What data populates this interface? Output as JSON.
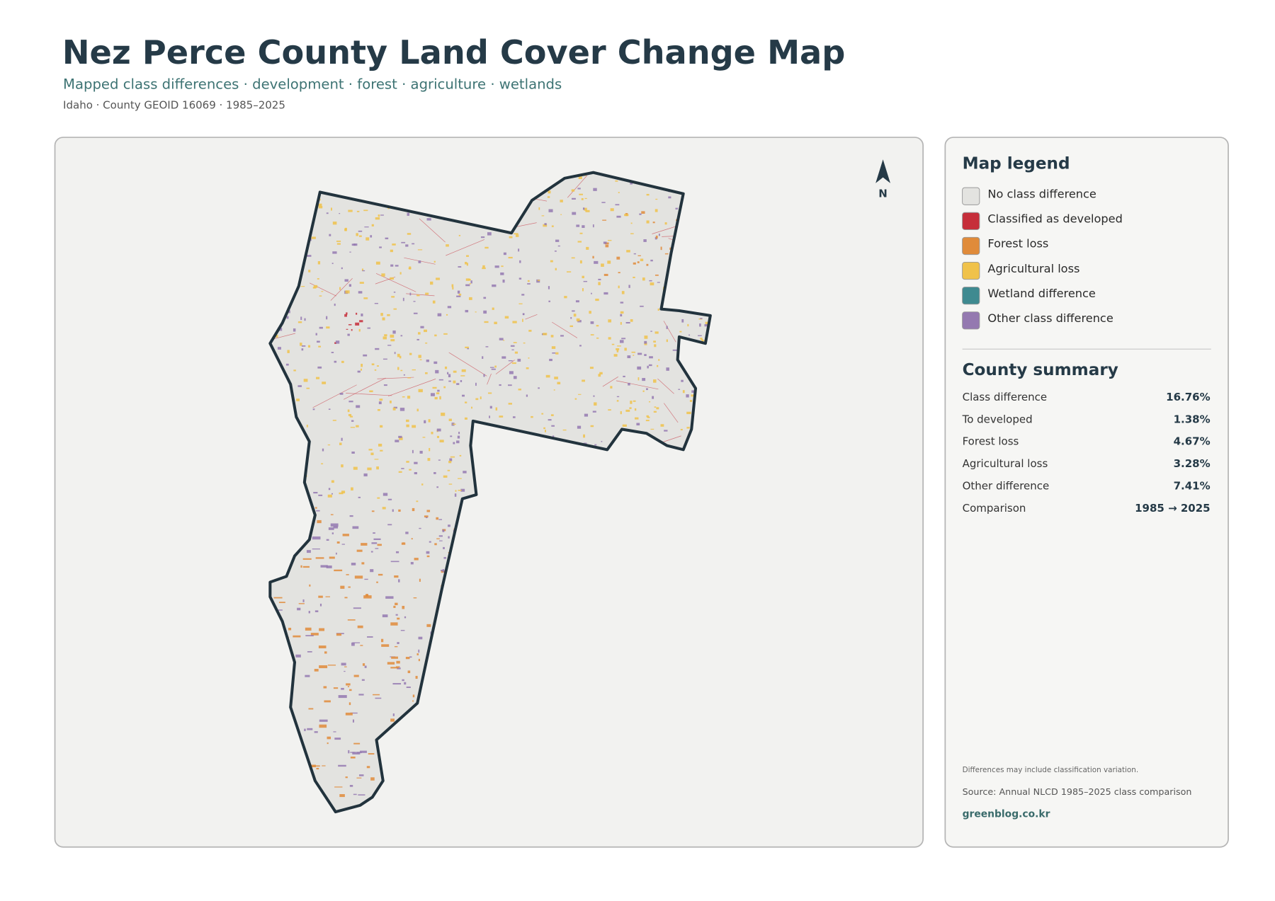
{
  "header": {
    "title": "Nez Perce County Land Cover Change Map",
    "subtitle": "Mapped class differences · development · forest · agriculture · wetlands",
    "meta": "Idaho · County GEOID 16069 · 1985–2025"
  },
  "map": {
    "north_label": "N"
  },
  "legend": {
    "title": "Map legend",
    "items": [
      {
        "label": "No class difference",
        "color": "#e3e3e0"
      },
      {
        "label": "Classified as developed",
        "color": "#c62e3a"
      },
      {
        "label": "Forest loss",
        "color": "#e08b3a"
      },
      {
        "label": "Agricultural loss",
        "color": "#f0c24a"
      },
      {
        "label": "Wetland difference",
        "color": "#3f8a90"
      },
      {
        "label": "Other class difference",
        "color": "#9479b0"
      }
    ]
  },
  "summary": {
    "title": "County summary",
    "rows": [
      {
        "label": "Class difference",
        "value": "16.76%"
      },
      {
        "label": "To developed",
        "value": "1.38%"
      },
      {
        "label": "Forest loss",
        "value": "4.67%"
      },
      {
        "label": "Agricultural loss",
        "value": "3.28%"
      },
      {
        "label": "Other difference",
        "value": "7.41%"
      },
      {
        "label": "Comparison",
        "value": "1985 → 2025"
      }
    ]
  },
  "footer": {
    "note": "Differences may include classification variation.",
    "source": "Source: Annual NLCD 1985–2025 class comparison",
    "site": "greenblog.co.kr"
  }
}
